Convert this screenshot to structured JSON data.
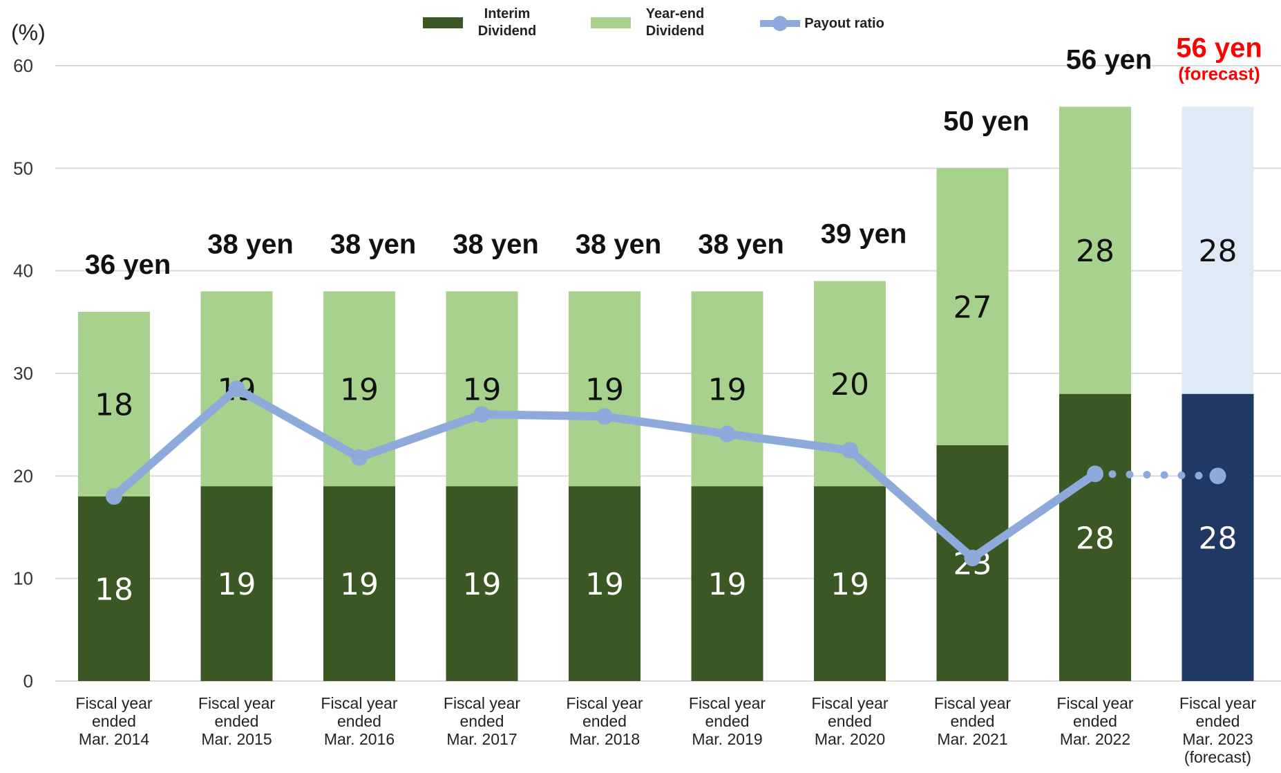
{
  "chart_data": {
    "type": "bar",
    "stacked": true,
    "ylabel": "(%)",
    "ylim": [
      0,
      60
    ],
    "yticks": [
      0,
      10,
      20,
      30,
      40,
      50,
      60
    ],
    "grid": true,
    "legend_position": "top-center",
    "categories": [
      [
        "Fiscal year",
        "ended",
        "Mar. 2014"
      ],
      [
        "Fiscal year",
        "ended",
        "Mar. 2015"
      ],
      [
        "Fiscal year",
        "ended",
        "Mar. 2016"
      ],
      [
        "Fiscal year",
        "ended",
        "Mar. 2017"
      ],
      [
        "Fiscal year",
        "ended",
        "Mar. 2018"
      ],
      [
        "Fiscal year",
        "ended",
        "Mar. 2019"
      ],
      [
        "Fiscal year",
        "ended",
        "Mar. 2020"
      ],
      [
        "Fiscal year",
        "ended",
        "Mar. 2021"
      ],
      [
        "Fiscal year",
        "ended",
        "Mar. 2022"
      ],
      [
        "Fiscal year",
        "ended",
        "Mar. 2023",
        "(forecast)"
      ]
    ],
    "series": [
      {
        "name": "Interim Dividend",
        "kind": "bar",
        "values": [
          18,
          19,
          19,
          19,
          19,
          19,
          19,
          23,
          28,
          28
        ]
      },
      {
        "name": "Year-end Dividend",
        "kind": "bar",
        "values": [
          18,
          19,
          19,
          19,
          19,
          19,
          20,
          27,
          28,
          28
        ]
      },
      {
        "name": "Payout ratio",
        "kind": "line",
        "values": [
          18.0,
          28.5,
          21.8,
          26.0,
          25.8,
          24.1,
          22.5,
          12.0,
          20.2,
          20.0
        ],
        "forecast_from_index": 8
      }
    ],
    "totals": [
      "36 yen",
      "38 yen",
      "38 yen",
      "38 yen",
      "38 yen",
      "38 yen",
      "39 yen",
      "50 yen",
      "56 yen",
      "56 yen"
    ],
    "forecast_index": 9,
    "forecast_note": "(forecast)",
    "legend": [
      {
        "lines": [
          "Interim",
          "Dividend"
        ],
        "icon": "bar-swatch",
        "color": "#3b5723"
      },
      {
        "lines": [
          "Year-end",
          "Dividend"
        ],
        "icon": "bar-swatch",
        "color": "#a9d18e"
      },
      {
        "lines": [
          "Payout ratio"
        ],
        "icon": "line-marker",
        "color": "#8eaadb"
      }
    ],
    "colors": {
      "interim": "#3b5723",
      "yearend": "#a9d18e",
      "interim_forecast": "#203864",
      "yearend_forecast": "#deebf7",
      "payout": "#8eaadb",
      "forecast_text": "#ff0000",
      "grid": "#d9d9d9"
    }
  }
}
